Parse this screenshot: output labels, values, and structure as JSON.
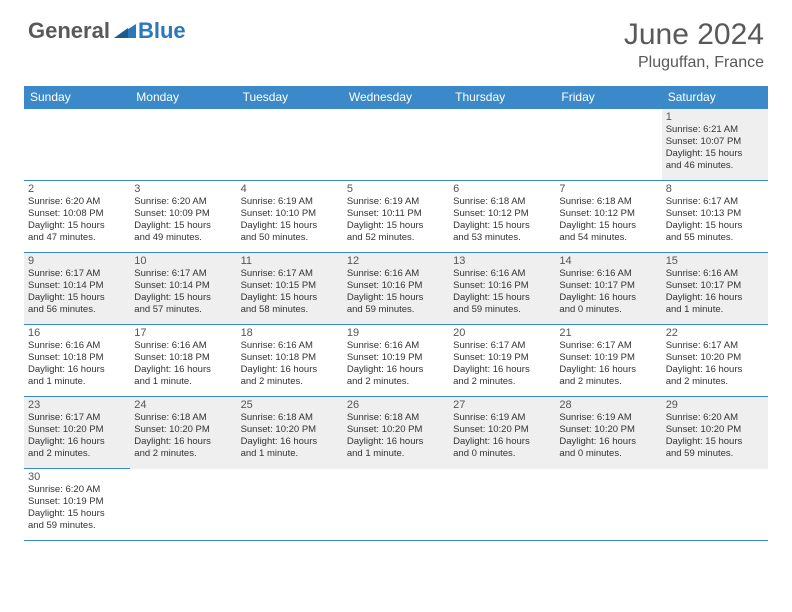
{
  "logo": {
    "general": "General",
    "blue": "Blue"
  },
  "title": "June 2024",
  "location": "Pluguffan, France",
  "colors": {
    "header_bg": "#3b89c9",
    "header_text": "#ffffff",
    "row_even": "#efefef",
    "row_odd": "#ffffff",
    "border": "#3b89c9",
    "logo_gray": "#58595b",
    "logo_blue": "#2a77bb"
  },
  "day_headers": [
    "Sunday",
    "Monday",
    "Tuesday",
    "Wednesday",
    "Thursday",
    "Friday",
    "Saturday"
  ],
  "weeks": [
    [
      {
        "blank": true
      },
      {
        "blank": true
      },
      {
        "blank": true
      },
      {
        "blank": true
      },
      {
        "blank": true
      },
      {
        "blank": true
      },
      {
        "day": "1",
        "sunrise": "Sunrise: 6:21 AM",
        "sunset": "Sunset: 10:07 PM",
        "daylight1": "Daylight: 15 hours",
        "daylight2": "and 46 minutes."
      }
    ],
    [
      {
        "day": "2",
        "sunrise": "Sunrise: 6:20 AM",
        "sunset": "Sunset: 10:08 PM",
        "daylight1": "Daylight: 15 hours",
        "daylight2": "and 47 minutes."
      },
      {
        "day": "3",
        "sunrise": "Sunrise: 6:20 AM",
        "sunset": "Sunset: 10:09 PM",
        "daylight1": "Daylight: 15 hours",
        "daylight2": "and 49 minutes."
      },
      {
        "day": "4",
        "sunrise": "Sunrise: 6:19 AM",
        "sunset": "Sunset: 10:10 PM",
        "daylight1": "Daylight: 15 hours",
        "daylight2": "and 50 minutes."
      },
      {
        "day": "5",
        "sunrise": "Sunrise: 6:19 AM",
        "sunset": "Sunset: 10:11 PM",
        "daylight1": "Daylight: 15 hours",
        "daylight2": "and 52 minutes."
      },
      {
        "day": "6",
        "sunrise": "Sunrise: 6:18 AM",
        "sunset": "Sunset: 10:12 PM",
        "daylight1": "Daylight: 15 hours",
        "daylight2": "and 53 minutes."
      },
      {
        "day": "7",
        "sunrise": "Sunrise: 6:18 AM",
        "sunset": "Sunset: 10:12 PM",
        "daylight1": "Daylight: 15 hours",
        "daylight2": "and 54 minutes."
      },
      {
        "day": "8",
        "sunrise": "Sunrise: 6:17 AM",
        "sunset": "Sunset: 10:13 PM",
        "daylight1": "Daylight: 15 hours",
        "daylight2": "and 55 minutes."
      }
    ],
    [
      {
        "day": "9",
        "sunrise": "Sunrise: 6:17 AM",
        "sunset": "Sunset: 10:14 PM",
        "daylight1": "Daylight: 15 hours",
        "daylight2": "and 56 minutes."
      },
      {
        "day": "10",
        "sunrise": "Sunrise: 6:17 AM",
        "sunset": "Sunset: 10:14 PM",
        "daylight1": "Daylight: 15 hours",
        "daylight2": "and 57 minutes."
      },
      {
        "day": "11",
        "sunrise": "Sunrise: 6:17 AM",
        "sunset": "Sunset: 10:15 PM",
        "daylight1": "Daylight: 15 hours",
        "daylight2": "and 58 minutes."
      },
      {
        "day": "12",
        "sunrise": "Sunrise: 6:16 AM",
        "sunset": "Sunset: 10:16 PM",
        "daylight1": "Daylight: 15 hours",
        "daylight2": "and 59 minutes."
      },
      {
        "day": "13",
        "sunrise": "Sunrise: 6:16 AM",
        "sunset": "Sunset: 10:16 PM",
        "daylight1": "Daylight: 15 hours",
        "daylight2": "and 59 minutes."
      },
      {
        "day": "14",
        "sunrise": "Sunrise: 6:16 AM",
        "sunset": "Sunset: 10:17 PM",
        "daylight1": "Daylight: 16 hours",
        "daylight2": "and 0 minutes."
      },
      {
        "day": "15",
        "sunrise": "Sunrise: 6:16 AM",
        "sunset": "Sunset: 10:17 PM",
        "daylight1": "Daylight: 16 hours",
        "daylight2": "and 1 minute."
      }
    ],
    [
      {
        "day": "16",
        "sunrise": "Sunrise: 6:16 AM",
        "sunset": "Sunset: 10:18 PM",
        "daylight1": "Daylight: 16 hours",
        "daylight2": "and 1 minute."
      },
      {
        "day": "17",
        "sunrise": "Sunrise: 6:16 AM",
        "sunset": "Sunset: 10:18 PM",
        "daylight1": "Daylight: 16 hours",
        "daylight2": "and 1 minute."
      },
      {
        "day": "18",
        "sunrise": "Sunrise: 6:16 AM",
        "sunset": "Sunset: 10:18 PM",
        "daylight1": "Daylight: 16 hours",
        "daylight2": "and 2 minutes."
      },
      {
        "day": "19",
        "sunrise": "Sunrise: 6:16 AM",
        "sunset": "Sunset: 10:19 PM",
        "daylight1": "Daylight: 16 hours",
        "daylight2": "and 2 minutes."
      },
      {
        "day": "20",
        "sunrise": "Sunrise: 6:17 AM",
        "sunset": "Sunset: 10:19 PM",
        "daylight1": "Daylight: 16 hours",
        "daylight2": "and 2 minutes."
      },
      {
        "day": "21",
        "sunrise": "Sunrise: 6:17 AM",
        "sunset": "Sunset: 10:19 PM",
        "daylight1": "Daylight: 16 hours",
        "daylight2": "and 2 minutes."
      },
      {
        "day": "22",
        "sunrise": "Sunrise: 6:17 AM",
        "sunset": "Sunset: 10:20 PM",
        "daylight1": "Daylight: 16 hours",
        "daylight2": "and 2 minutes."
      }
    ],
    [
      {
        "day": "23",
        "sunrise": "Sunrise: 6:17 AM",
        "sunset": "Sunset: 10:20 PM",
        "daylight1": "Daylight: 16 hours",
        "daylight2": "and 2 minutes."
      },
      {
        "day": "24",
        "sunrise": "Sunrise: 6:18 AM",
        "sunset": "Sunset: 10:20 PM",
        "daylight1": "Daylight: 16 hours",
        "daylight2": "and 2 minutes."
      },
      {
        "day": "25",
        "sunrise": "Sunrise: 6:18 AM",
        "sunset": "Sunset: 10:20 PM",
        "daylight1": "Daylight: 16 hours",
        "daylight2": "and 1 minute."
      },
      {
        "day": "26",
        "sunrise": "Sunrise: 6:18 AM",
        "sunset": "Sunset: 10:20 PM",
        "daylight1": "Daylight: 16 hours",
        "daylight2": "and 1 minute."
      },
      {
        "day": "27",
        "sunrise": "Sunrise: 6:19 AM",
        "sunset": "Sunset: 10:20 PM",
        "daylight1": "Daylight: 16 hours",
        "daylight2": "and 0 minutes."
      },
      {
        "day": "28",
        "sunrise": "Sunrise: 6:19 AM",
        "sunset": "Sunset: 10:20 PM",
        "daylight1": "Daylight: 16 hours",
        "daylight2": "and 0 minutes."
      },
      {
        "day": "29",
        "sunrise": "Sunrise: 6:20 AM",
        "sunset": "Sunset: 10:20 PM",
        "daylight1": "Daylight: 15 hours",
        "daylight2": "and 59 minutes."
      }
    ],
    [
      {
        "day": "30",
        "sunrise": "Sunrise: 6:20 AM",
        "sunset": "Sunset: 10:19 PM",
        "daylight1": "Daylight: 15 hours",
        "daylight2": "and 59 minutes."
      },
      {
        "blank": true
      },
      {
        "blank": true
      },
      {
        "blank": true
      },
      {
        "blank": true
      },
      {
        "blank": true
      },
      {
        "blank": true
      }
    ]
  ]
}
